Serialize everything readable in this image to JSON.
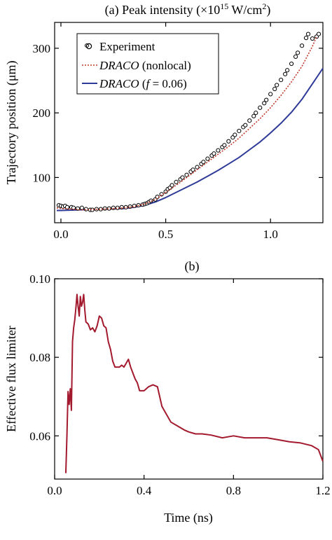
{
  "chart_data": [
    {
      "type": "scatter",
      "title": "(a) Peak intensity (×10",
      "title_superscript": "15",
      "title_unit": " W/cm",
      "title_unit_superscript": "2",
      "title_close": ")",
      "xlabel": "",
      "ylabel": "Trajectory position (μm)",
      "xlim": [
        -0.03,
        1.25
      ],
      "ylim": [
        30,
        340
      ],
      "xticks": [
        0.0,
        0.5,
        1.0
      ],
      "xtick_labels": [
        "0.0",
        "0.5",
        "1.0"
      ],
      "yticks": [
        100,
        200,
        300
      ],
      "ytick_labels": [
        "100",
        "200",
        "300"
      ],
      "grid": false,
      "legend_position": "top-left",
      "legend": [
        {
          "label": "Experiment",
          "marker": "open-circle",
          "color": "#000000"
        },
        {
          "label_italic": "DRACO",
          "label_rest": " (nonlocal)",
          "style": "dotted",
          "color": "#c0392b"
        },
        {
          "label_italic": "DRACO",
          "label_rest": " (",
          "label_italic2": "f",
          "label_rest2": " = 0.06)",
          "style": "solid",
          "color": "#2e3a97"
        }
      ],
      "series": [
        {
          "name": "Experiment",
          "kind": "markers",
          "color": "#000000",
          "x": [
            -0.01,
            0.0,
            0.01,
            0.02,
            0.03,
            0.05,
            0.06,
            0.08,
            0.1,
            0.12,
            0.14,
            0.15,
            0.17,
            0.19,
            0.21,
            0.23,
            0.25,
            0.27,
            0.29,
            0.31,
            0.33,
            0.35,
            0.37,
            0.39,
            0.4,
            0.41,
            0.42,
            0.43,
            0.45,
            0.46,
            0.48,
            0.5,
            0.51,
            0.52,
            0.53,
            0.55,
            0.57,
            0.58,
            0.6,
            0.62,
            0.63,
            0.65,
            0.67,
            0.68,
            0.7,
            0.72,
            0.73,
            0.75,
            0.77,
            0.78,
            0.8,
            0.82,
            0.83,
            0.85,
            0.87,
            0.88,
            0.9,
            0.92,
            0.93,
            0.95,
            0.97,
            0.98,
            1.0,
            1.02,
            1.03,
            1.05,
            1.07,
            1.08,
            1.1,
            1.12,
            1.13,
            1.15,
            1.17,
            1.18,
            1.2,
            1.22,
            1.23
          ],
          "y": [
            57,
            56,
            55,
            56,
            54,
            54,
            53,
            52,
            53,
            51,
            50,
            50,
            51,
            51,
            52,
            52,
            53,
            53,
            54,
            54,
            55,
            56,
            57,
            58,
            59,
            60,
            62,
            64,
            66,
            70,
            74,
            78,
            82,
            84,
            88,
            93,
            97,
            100,
            104,
            109,
            112,
            116,
            121,
            124,
            129,
            134,
            137,
            142,
            147,
            150,
            156,
            162,
            166,
            172,
            178,
            181,
            188,
            195,
            200,
            208,
            215,
            220,
            229,
            237,
            243,
            251,
            260,
            266,
            276,
            287,
            293,
            304,
            316,
            322,
            315,
            318,
            322
          ]
        },
        {
          "name": "DRACO (nonlocal)",
          "kind": "line",
          "style": "dotted",
          "color": "#c0392b",
          "x": [
            -0.02,
            0.0,
            0.1,
            0.2,
            0.3,
            0.35,
            0.4,
            0.45,
            0.5,
            0.55,
            0.6,
            0.65,
            0.7,
            0.75,
            0.8,
            0.85,
            0.9,
            0.95,
            1.0,
            1.05,
            1.1,
            1.15,
            1.2,
            1.22
          ],
          "y": [
            53,
            52,
            50,
            51,
            53,
            55,
            59,
            66,
            77,
            88,
            100,
            112,
            124,
            136,
            148,
            161,
            176,
            191,
            208,
            227,
            248,
            272,
            303,
            318
          ]
        },
        {
          "name": "DRACO (f = 0.06)",
          "kind": "line",
          "style": "solid",
          "color": "#2e3a97",
          "x": [
            -0.02,
            0.0,
            0.1,
            0.2,
            0.3,
            0.35,
            0.4,
            0.45,
            0.5,
            0.55,
            0.6,
            0.65,
            0.7,
            0.75,
            0.8,
            0.85,
            0.9,
            0.95,
            1.0,
            1.05,
            1.1,
            1.15,
            1.2,
            1.25
          ],
          "y": [
            49,
            49,
            50,
            51,
            52,
            54,
            57,
            62,
            69,
            77,
            85,
            93,
            102,
            111,
            121,
            131,
            143,
            155,
            169,
            184,
            201,
            221,
            245,
            269
          ]
        }
      ]
    },
    {
      "type": "line",
      "title": "(b)",
      "xlabel": "Time (ns)",
      "ylabel": "Effective flux limiter",
      "xlim": [
        0.0,
        1.2
      ],
      "ylim": [
        0.049,
        0.1
      ],
      "xticks": [
        0.0,
        0.4,
        0.8,
        1.2
      ],
      "xtick_labels": [
        "0.0",
        "0.4",
        "0.8",
        "1.2"
      ],
      "yticks": [
        0.06,
        0.08,
        0.1
      ],
      "ytick_labels": [
        "0.06",
        "0.08",
        "0.10"
      ],
      "grid": false,
      "series": [
        {
          "name": "",
          "color": "#a31a2e",
          "x": [
            0.05,
            0.055,
            0.06,
            0.065,
            0.07,
            0.075,
            0.08,
            0.085,
            0.09,
            0.095,
            0.1,
            0.105,
            0.11,
            0.115,
            0.12,
            0.125,
            0.13,
            0.135,
            0.14,
            0.15,
            0.16,
            0.17,
            0.18,
            0.19,
            0.2,
            0.21,
            0.22,
            0.23,
            0.24,
            0.25,
            0.26,
            0.27,
            0.28,
            0.29,
            0.3,
            0.31,
            0.32,
            0.33,
            0.34,
            0.35,
            0.36,
            0.37,
            0.38,
            0.39,
            0.4,
            0.42,
            0.44,
            0.46,
            0.48,
            0.5,
            0.52,
            0.55,
            0.58,
            0.6,
            0.63,
            0.66,
            0.7,
            0.75,
            0.8,
            0.85,
            0.9,
            0.95,
            1.0,
            1.05,
            1.1,
            1.15,
            1.18,
            1.2
          ],
          "y": [
            0.0505,
            0.06,
            0.0713,
            0.068,
            0.072,
            0.0665,
            0.084,
            0.0875,
            0.0895,
            0.0925,
            0.096,
            0.093,
            0.0905,
            0.0955,
            0.093,
            0.094,
            0.096,
            0.092,
            0.089,
            0.0885,
            0.087,
            0.0875,
            0.0865,
            0.088,
            0.0905,
            0.09,
            0.088,
            0.0875,
            0.084,
            0.082,
            0.079,
            0.0775,
            0.0775,
            0.0775,
            0.078,
            0.0775,
            0.0785,
            0.0795,
            0.0775,
            0.076,
            0.0745,
            0.0735,
            0.0715,
            0.0715,
            0.0715,
            0.0725,
            0.073,
            0.0725,
            0.0675,
            0.0655,
            0.0635,
            0.0625,
            0.0615,
            0.061,
            0.0605,
            0.0605,
            0.0602,
            0.0595,
            0.06,
            0.0595,
            0.0595,
            0.0595,
            0.059,
            0.0585,
            0.0582,
            0.0575,
            0.0565,
            0.0535
          ]
        }
      ]
    }
  ]
}
